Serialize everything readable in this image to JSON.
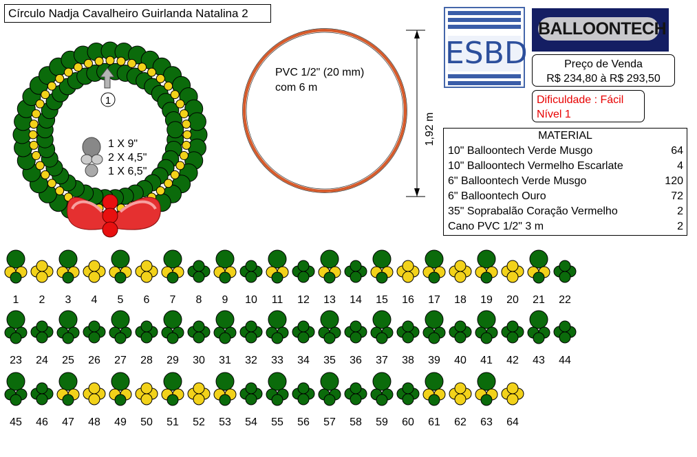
{
  "title": "Círculo Nadja Cavalheiro Guirlanda Natalina 2",
  "logos": {
    "esbd": "ESBD",
    "balloontech": "BALLOONTECH"
  },
  "price": {
    "label": "Preço de Venda",
    "value": "R$ 234,80 à R$ 293,50"
  },
  "difficulty": {
    "line1": "Dificuldade : Fácil",
    "line2": "Nível 1"
  },
  "material": {
    "heading": "MATERIAL",
    "items": [
      {
        "name": "10\" Balloontech Verde Musgo",
        "qty": "64"
      },
      {
        "name": "10\" Balloontech Vermelho Escarlate",
        "qty": "4"
      },
      {
        "name": "6\" Balloontech Verde Musgo",
        "qty": "120"
      },
      {
        "name": "6\" Balloontech Ouro",
        "qty": "72"
      },
      {
        "name": "35\" Soprabalão Coração Vermelho",
        "qty": "2"
      },
      {
        "name": "Cano PVC 1/2\" 3 m",
        "qty": "2"
      }
    ]
  },
  "frame": {
    "line1": "PVC 1/2\" (20 mm)",
    "line2": "com 6 m",
    "dimension": "1,92 m"
  },
  "wreath": {
    "marker": "1",
    "cluster_lines": [
      "1 X 9\"",
      "2 X 4,5\"",
      "1 X 6,5\""
    ]
  },
  "colors": {
    "green": "#0b6b0b",
    "gold": "#f2d21a",
    "red": "#e21f1f",
    "frame": "#e06030"
  },
  "sequence_types": [
    "A",
    "B",
    "A",
    "B",
    "A",
    "B",
    "A",
    "C",
    "A",
    "C",
    "A",
    "C",
    "A",
    "C",
    "A",
    "B",
    "A",
    "B",
    "A",
    "B",
    "A",
    "C",
    "D",
    "C",
    "D",
    "C",
    "D",
    "C",
    "D",
    "C",
    "D",
    "C",
    "D",
    "C",
    "D",
    "C",
    "D",
    "C",
    "D",
    "C",
    "D",
    "C",
    "D",
    "C",
    "D",
    "C",
    "A",
    "B",
    "A",
    "B",
    "A",
    "B",
    "A",
    "C",
    "D",
    "C",
    "D",
    "C",
    "D",
    "C",
    "A",
    "B",
    "A",
    "B"
  ],
  "sequence_numbers": [
    "1",
    "2",
    "3",
    "4",
    "5",
    "6",
    "7",
    "8",
    "9",
    "10",
    "11",
    "12",
    "13",
    "14",
    "15",
    "16",
    "17",
    "18",
    "19",
    "20",
    "21",
    "22",
    "23",
    "24",
    "25",
    "26",
    "27",
    "28",
    "29",
    "30",
    "31",
    "32",
    "33",
    "34",
    "35",
    "36",
    "37",
    "38",
    "39",
    "40",
    "41",
    "42",
    "43",
    "44",
    "45",
    "46",
    "47",
    "48",
    "49",
    "50",
    "51",
    "52",
    "53",
    "54",
    "55",
    "56",
    "57",
    "58",
    "59",
    "60",
    "61",
    "62",
    "63",
    "64"
  ]
}
